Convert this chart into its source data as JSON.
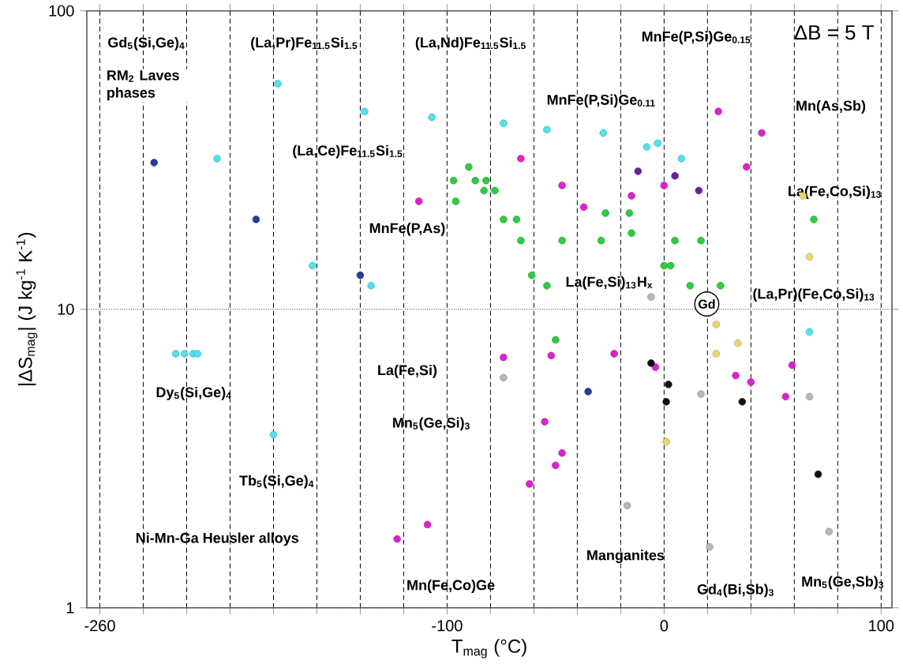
{
  "chart_data": {
    "type": "scatter",
    "xlabel": "T$_{mag}$ (°C)",
    "ylabel": "|ΔS$_{mag}$|  (J kg$^{-1}$ K$^{-1}$)",
    "xlim": [
      -266,
      105
    ],
    "ylim": [
      1,
      100
    ],
    "log": "y",
    "grid": true,
    "marker": "circle",
    "xticks": [
      -260,
      {
        "value": -240,
        "label": null
      },
      {
        "value": -220,
        "label": null
      },
      {
        "value": -200,
        "label": null
      },
      {
        "value": -180,
        "label": null
      },
      {
        "value": -160,
        "label": null
      },
      {
        "value": -140,
        "label": null
      },
      {
        "value": -120,
        "label": null
      },
      -100,
      {
        "value": -80,
        "label": null
      },
      {
        "value": -60,
        "label": null
      },
      {
        "value": -40,
        "label": null
      },
      {
        "value": -20,
        "label": null
      },
      0,
      {
        "value": 20,
        "label": null
      },
      {
        "value": 40,
        "label": null
      },
      {
        "value": 60,
        "label": null
      },
      {
        "value": 80,
        "label": null
      },
      100
    ],
    "yticks": [
      1,
      10,
      100
    ],
    "series": [
      {
        "color": "#4fe3ee",
        "x": [
          -178,
          -138,
          -107,
          -74,
          -54,
          -28,
          -8,
          -3,
          8,
          -206,
          -225,
          -221,
          -217,
          -215,
          -162,
          -135,
          -180,
          67
        ],
        "values": [
          57,
          46,
          44,
          42,
          40,
          39,
          35,
          36,
          32,
          32,
          7.1,
          7.1,
          7.1,
          7.1,
          14,
          12,
          3.8,
          8.4
        ]
      },
      {
        "color": "#1f3fa0",
        "x": [
          -235,
          -188,
          -140,
          -35
        ],
        "values": [
          31,
          20,
          13,
          5.3
        ]
      },
      {
        "color": "#6a1fa0",
        "x": [
          -12,
          5,
          16
        ],
        "values": [
          29,
          28,
          25
        ]
      },
      {
        "color": "#2ecc40",
        "x": [
          -97,
          -96,
          -90,
          -87,
          -82,
          -83,
          -78,
          -74,
          -68,
          -66,
          -61,
          -54,
          -50,
          -47,
          -29,
          -15,
          5,
          17,
          69,
          0,
          3,
          12,
          26,
          -27,
          -16
        ],
        "values": [
          27,
          23,
          30,
          27,
          27,
          25,
          25,
          20,
          20,
          17,
          13,
          12,
          7.9,
          17,
          17,
          18,
          17,
          17,
          20,
          14,
          14,
          12,
          12,
          21,
          21
        ]
      },
      {
        "color": "#e020d0",
        "x": [
          -113,
          -66,
          -47,
          -37,
          -15,
          0,
          25,
          45,
          38,
          -74,
          -52,
          -23,
          -4,
          33,
          59,
          -55,
          -47,
          -62,
          -50,
          -109,
          -123,
          40,
          56
        ],
        "values": [
          23,
          32,
          26,
          22,
          24,
          26,
          46,
          39,
          30,
          6.9,
          7.0,
          7.1,
          6.4,
          6.0,
          6.5,
          4.2,
          3.3,
          2.6,
          3.0,
          1.9,
          1.7,
          5.7,
          5.1
        ]
      },
      {
        "color": "#e8d870",
        "x": [
          64,
          67,
          24,
          24,
          34,
          1
        ],
        "values": [
          24,
          15,
          8.9,
          7.1,
          7.7,
          3.6
        ]
      },
      {
        "color": "#b8b8b8",
        "x": [
          -6,
          -74,
          -17,
          21,
          76,
          67,
          17
        ],
        "values": [
          11,
          5.9,
          2.2,
          1.6,
          1.8,
          5.1,
          5.2
        ]
      },
      {
        "color": "#101010",
        "x": [
          -6,
          2,
          1,
          36,
          71
        ],
        "values": [
          6.6,
          5.6,
          4.9,
          4.9,
          2.8
        ]
      }
    ],
    "annotations": [
      "ΔB = 5 T",
      "Gd$_{5}$(Si,Ge)$_{4}$",
      "RM$_{2}$ Laves phases",
      "(La,Pr)Fe$_{11.5}$Si$_{1.5}$",
      "(La,Nd)Fe$_{11.5}$Si$_{1.5}$",
      "MnFe(P,Si)Ge$_{0.15}$",
      "MnFe(P,Si)Ge$_{0.11}$",
      "Mn(As,Sb)",
      "(La,Ce)Fe$_{11.5}$Si$_{1.5}$",
      "La(Fe,Co,Si)$_{13}$",
      "MnFe(P,As)",
      "La(Fe,Si)$_{13}$H$_{x}$",
      "(La,Pr)(Fe,Co,Si)$_{13}$",
      "Gd",
      "La(Fe,Si)",
      "Mn$_{5}$(Ge,Si)$_{3}$",
      "Dy$_{5}$(Si,Ge)$_{4}$",
      "Tb$_{5}$(Si,Ge)$_{4}$",
      "Ni-Mn-Ga Heusler alloys",
      "Mn(Fe,Co)Ge",
      "Manganites",
      "Gd$_{4}$(Bi,Sb)$_{3}$",
      "Mn$_{5}$(Ge,Sb)$_{3}$"
    ]
  }
}
